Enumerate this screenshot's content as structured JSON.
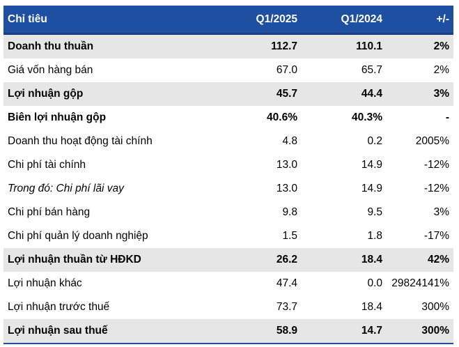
{
  "table": {
    "headers": [
      "Chỉ tiêu",
      "Q1/2025",
      "Q1/2024",
      "+/-"
    ],
    "rows": [
      {
        "label": "Doanh thu thuần",
        "q1_2025": "112.7",
        "q1_2024": "110.1",
        "change": "2%",
        "bold": true,
        "shade": true,
        "italic": false
      },
      {
        "label": "Giá vốn hàng bán",
        "q1_2025": "67.0",
        "q1_2024": "65.7",
        "change": "2%",
        "bold": false,
        "shade": false,
        "italic": false
      },
      {
        "label": "Lợi nhuận gộp",
        "q1_2025": "45.7",
        "q1_2024": "44.4",
        "change": "3%",
        "bold": true,
        "shade": true,
        "italic": false
      },
      {
        "label": "Biên lợi nhuận gộp",
        "q1_2025": "40.6%",
        "q1_2024": "40.3%",
        "change": "-",
        "bold": true,
        "shade": false,
        "italic": false
      },
      {
        "label": "Doanh thu hoạt động tài chính",
        "q1_2025": "4.8",
        "q1_2024": "0.2",
        "change": "2005%",
        "bold": false,
        "shade": false,
        "italic": false
      },
      {
        "label": "Chi phí tài chính",
        "q1_2025": "13.0",
        "q1_2024": "14.9",
        "change": "-12%",
        "bold": false,
        "shade": false,
        "italic": false
      },
      {
        "label": "Trong đó: Chi phí lãi vay",
        "q1_2025": "13.0",
        "q1_2024": "14.9",
        "change": "-12%",
        "bold": false,
        "shade": false,
        "italic": true
      },
      {
        "label": "Chi phí bán hàng",
        "q1_2025": "9.8",
        "q1_2024": "9.5",
        "change": "3%",
        "bold": false,
        "shade": false,
        "italic": false
      },
      {
        "label": "Chi phí quản lý doanh nghiệp",
        "q1_2025": "1.5",
        "q1_2024": "1.8",
        "change": "-17%",
        "bold": false,
        "shade": false,
        "italic": false
      },
      {
        "label": "Lợi nhuận thuần từ HĐKD",
        "q1_2025": "26.2",
        "q1_2024": "18.4",
        "change": "42%",
        "bold": true,
        "shade": true,
        "italic": false
      },
      {
        "label": "Lợi nhuận khác",
        "q1_2025": "47.4",
        "q1_2024": "0.0",
        "change": "29824141%",
        "bold": false,
        "shade": false,
        "italic": false
      },
      {
        "label": "Lợi nhuận trước thuế",
        "q1_2025": "73.7",
        "q1_2024": "18.4",
        "change": "300%",
        "bold": false,
        "shade": false,
        "italic": false
      },
      {
        "label": "Lợi nhuận sau thuế",
        "q1_2025": "58.9",
        "q1_2024": "14.7",
        "change": "300%",
        "bold": true,
        "shade": true,
        "italic": false
      }
    ]
  },
  "colors": {
    "header_bg": "#1f4fa0",
    "header_text": "#ffffff",
    "shade_bg": "#e6e6e6"
  }
}
